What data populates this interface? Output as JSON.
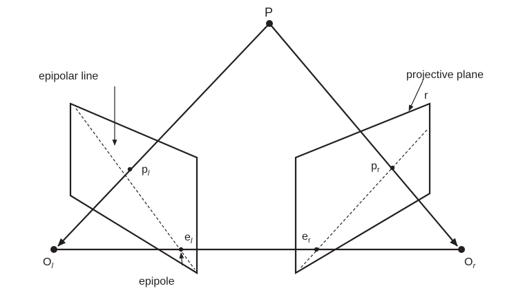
{
  "diagram": {
    "stroke_color": "#231f20",
    "background": "#ffffff",
    "labels": {
      "point_P": "P",
      "epipolar_line": "epipolar line",
      "projective_plane": "projective plane",
      "plane_corner_r": "r",
      "left_image_point": {
        "base": "p",
        "subscript": "l"
      },
      "right_image_point": {
        "base": "p",
        "subscript": "r"
      },
      "left_epipole": {
        "base": "e",
        "subscript": "l"
      },
      "right_epipole": {
        "base": "e",
        "subscript": "r"
      },
      "left_center": {
        "base": "O",
        "subscript": "l"
      },
      "right_center": {
        "base": "O",
        "subscript": "r"
      },
      "epipole": "epipole"
    }
  }
}
